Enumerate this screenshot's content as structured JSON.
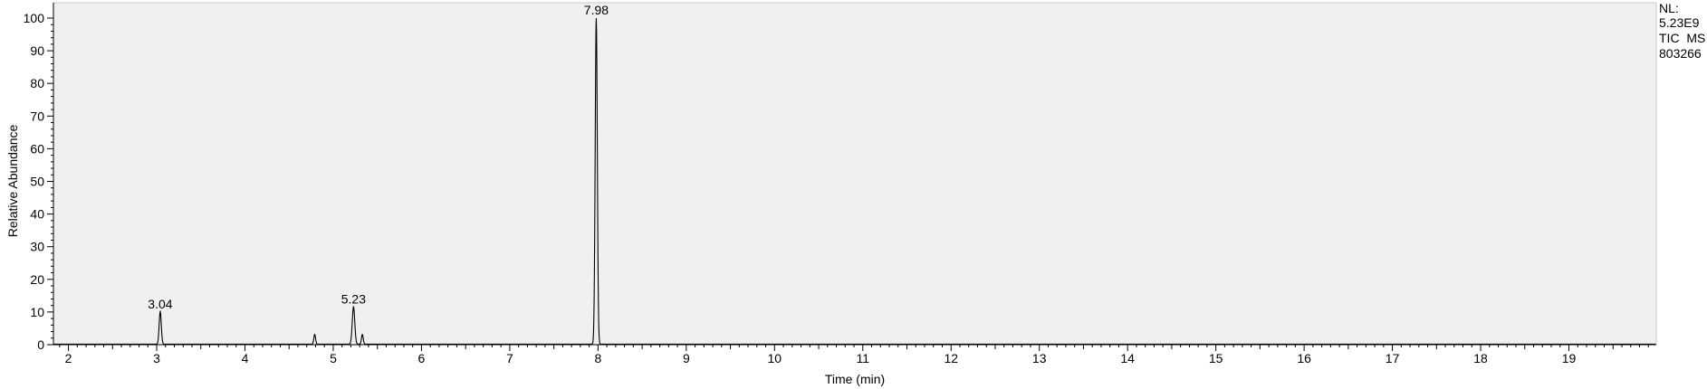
{
  "chart_data": {
    "type": "line",
    "title": "",
    "xlabel": "Time (min)",
    "ylabel": "Relative Abundance",
    "xlim": [
      1.83,
      19.99
    ],
    "ylim": [
      0,
      100
    ],
    "x_ticks": [
      2,
      3,
      4,
      5,
      6,
      7,
      8,
      9,
      10,
      11,
      12,
      13,
      14,
      15,
      16,
      17,
      18,
      19
    ],
    "y_ticks": [
      0,
      10,
      20,
      30,
      40,
      50,
      60,
      70,
      80,
      90,
      100
    ],
    "x_minor_step": 0.1,
    "y_minor_step": 2,
    "grid": false,
    "series": [
      {
        "name": "TIC MS 803266",
        "color": "#000000",
        "peaks": [
          {
            "rt": 3.04,
            "height": 10.0,
            "width": 0.012,
            "label": "3.04"
          },
          {
            "rt": 4.79,
            "height": 3.0,
            "width": 0.01,
            "label": ""
          },
          {
            "rt": 5.23,
            "height": 11.5,
            "width": 0.014,
            "label": "5.23"
          },
          {
            "rt": 5.33,
            "height": 3.0,
            "width": 0.01,
            "label": ""
          },
          {
            "rt": 7.98,
            "height": 100.0,
            "width": 0.012,
            "label": "7.98"
          }
        ]
      }
    ],
    "info": {
      "nl_label": "NL:",
      "nl_value": "5.23E9",
      "scan_filter": "TIC  MS",
      "file_id": "803266"
    },
    "background_color": "#f0f0f0"
  }
}
